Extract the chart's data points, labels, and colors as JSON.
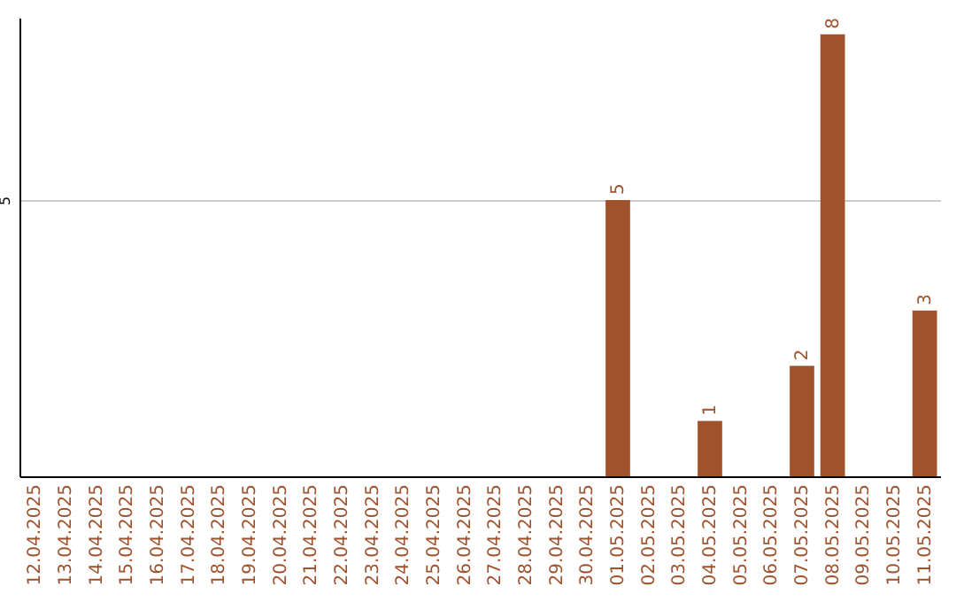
{
  "chart_data": {
    "type": "bar",
    "categories": [
      "12.04.2025",
      "13.04.2025",
      "14.04.2025",
      "15.04.2025",
      "16.04.2025",
      "17.04.2025",
      "18.04.2025",
      "19.04.2025",
      "20.04.2025",
      "21.04.2025",
      "22.04.2025",
      "23.04.2025",
      "24.04.2025",
      "25.04.2025",
      "26.04.2025",
      "27.04.2025",
      "28.04.2025",
      "29.04.2025",
      "30.04.2025",
      "01.05.2025",
      "02.05.2025",
      "03.05.2025",
      "04.05.2025",
      "05.05.2025",
      "06.05.2025",
      "07.05.2025",
      "08.05.2025",
      "09.05.2025",
      "10.05.2025",
      "11.05.2025"
    ],
    "values": [
      null,
      null,
      null,
      null,
      null,
      null,
      null,
      null,
      null,
      null,
      null,
      null,
      null,
      null,
      null,
      null,
      null,
      null,
      null,
      5,
      null,
      null,
      1,
      null,
      null,
      2,
      8,
      null,
      null,
      3
    ],
    "color": "#a0522d",
    "ylim": [
      0,
      8.3
    ],
    "yticks": [
      5
    ],
    "grid": "y",
    "data_labels": true
  }
}
